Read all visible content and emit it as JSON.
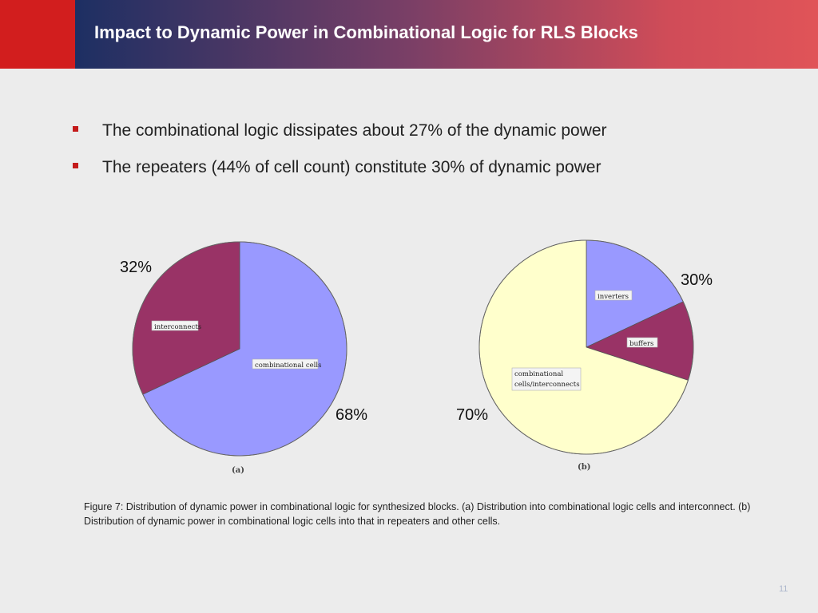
{
  "slide": {
    "title": "Impact to Dynamic Power in Combinational Logic for RLS Blocks",
    "bullets": [
      "The combinational logic dissipates about 27% of the dynamic power",
      "The repeaters (44% of cell count) constitute 30% of dynamic power"
    ],
    "caption": "Figure 7: Distribution of dynamic power in combinational logic for synthesized blocks. (a) Distribution into combinational logic cells and interconnect. (b) Distribution of dynamic power in combinational logic cells into that in repeaters and other cells.",
    "page_number": "11"
  },
  "colors": {
    "header_accent": "#d21e1e",
    "bullet_marker": "#c41a1a",
    "periwinkle": "#9999ff",
    "maroon": "#993366",
    "cream": "#ffffcc"
  },
  "chart_data": [
    {
      "type": "pie",
      "panel_label": "(a)",
      "slices": [
        {
          "label": "combinational cells",
          "value": 68,
          "value_label": "68%",
          "color": "#9999ff"
        },
        {
          "label": "interconnects",
          "value": 32,
          "value_label": "32%",
          "color": "#993366"
        }
      ]
    },
    {
      "type": "pie",
      "panel_label": "(b)",
      "slices": [
        {
          "label": "inverters",
          "value": 18,
          "color": "#9999ff"
        },
        {
          "label": "buffers",
          "value": 12,
          "color": "#993366"
        },
        {
          "label": "combinational cells/interconnects",
          "value": 70,
          "value_label": "70%",
          "color": "#ffffcc"
        }
      ],
      "group_labels": [
        {
          "text": "30%",
          "covers": [
            "inverters",
            "buffers"
          ]
        }
      ]
    }
  ]
}
